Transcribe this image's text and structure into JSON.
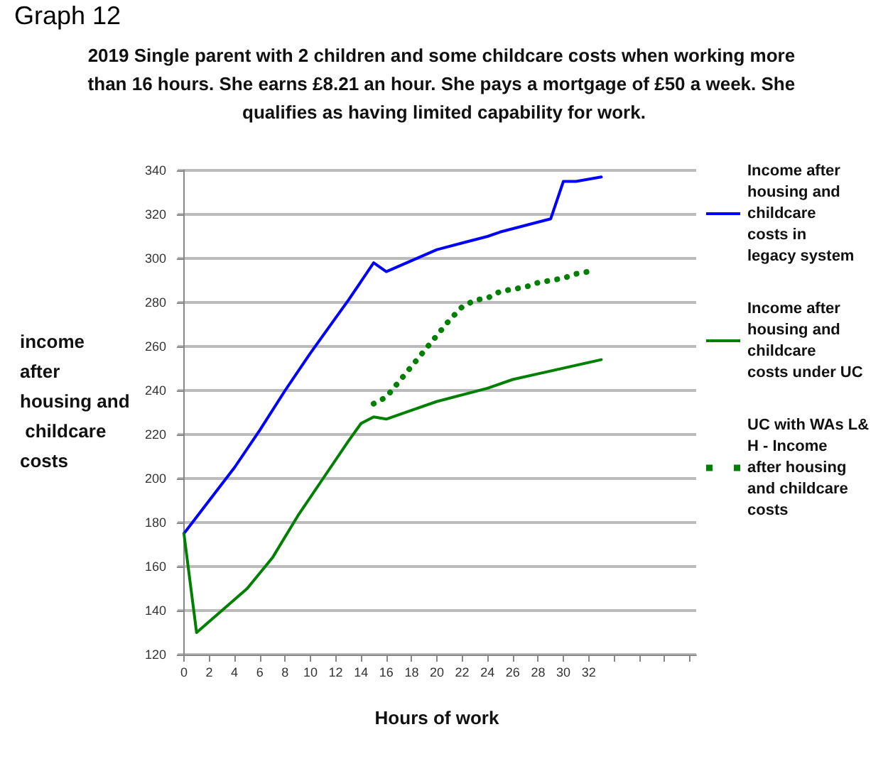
{
  "chart_data": {
    "type": "line",
    "title": "2019 Single parent with 2 children and some childcare costs when working more than 16 hours. She earns £8.21 an hour. She pays a mortgage of £50 a week. She qualifies as having limited capability for work.",
    "xlabel": "Hours of work",
    "ylabel": "income after housing and childcare costs",
    "annotations": [
      "Graph 12"
    ],
    "xlim": [
      -0.5,
      40.5
    ],
    "xticks": [
      0,
      2,
      4,
      6,
      8,
      10,
      12,
      14,
      16,
      18,
      20,
      22,
      24,
      26,
      28,
      30,
      32,
      {
        "value": 34,
        "label": null
      },
      {
        "value": 36,
        "label": null
      },
      {
        "value": 38,
        "label": null
      },
      {
        "value": 40,
        "label": null
      }
    ],
    "ylim": [
      120,
      340
    ],
    "yticks": [
      120,
      140,
      160,
      180,
      200,
      220,
      240,
      260,
      280,
      300,
      320,
      340
    ],
    "grid": "y",
    "legend": "right",
    "marker": "none",
    "series": [
      {
        "name": "Income after housing and childcare costs in legacy system",
        "color": "#0000ff",
        "line_style": "solid",
        "x": [
          0,
          2,
          4,
          6,
          8,
          10,
          12,
          13,
          15,
          16,
          18,
          20,
          22,
          24,
          25,
          29,
          30,
          31,
          33
        ],
        "values": [
          175,
          190,
          205,
          222,
          240,
          257,
          273,
          281,
          298,
          294,
          299,
          304,
          307,
          310,
          312,
          318,
          335,
          335,
          337
        ]
      },
      {
        "name": "Income after housing and childcare costs under UC",
        "color": "#008000",
        "line_style": "solid",
        "x": [
          0,
          1,
          3,
          5,
          7,
          9,
          11,
          13,
          14,
          15,
          16,
          18,
          20,
          24,
          26,
          33
        ],
        "values": [
          175,
          130,
          140,
          150,
          164,
          183,
          200,
          217,
          225,
          228,
          227,
          231,
          235,
          241,
          245,
          254
        ]
      },
      {
        "name": "UC with WAs L&H - Income after housing and childcare costs",
        "color": "#008000",
        "line_style": "dotted",
        "x": [
          15,
          16,
          17,
          18,
          19,
          20,
          21,
          22,
          23,
          24,
          25,
          26,
          27,
          28,
          29,
          30,
          31,
          32
        ],
        "values": [
          234,
          237,
          244,
          251,
          258,
          265,
          272,
          278,
          281,
          282,
          285,
          286,
          287,
          289,
          290,
          291,
          293,
          294
        ]
      }
    ]
  }
}
